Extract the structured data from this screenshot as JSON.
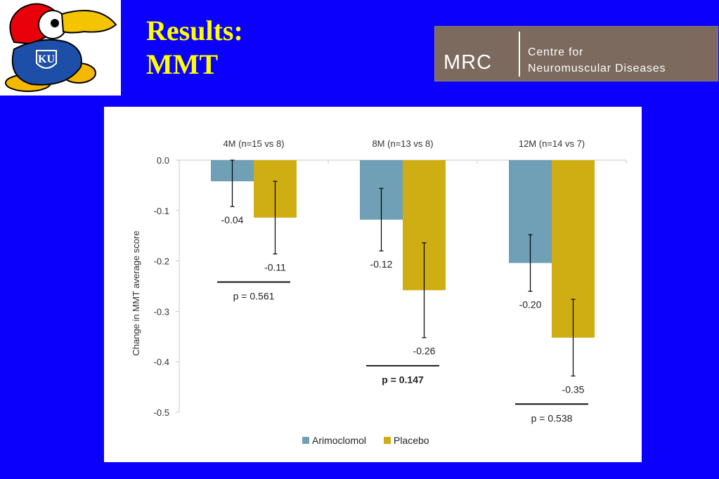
{
  "header": {
    "title_line1": "Results:",
    "title_line2": "MMT",
    "mrc_logo": {
      "abbr": "MRC",
      "line1": "Centre for",
      "line2": "Neuromuscular Diseases"
    },
    "ku_logo": {
      "text": "KU",
      "icon": "jayhawk-mascot-icon"
    }
  },
  "colors": {
    "background": "#0a00fb",
    "title": "#ffff00",
    "arimoclomol": "#6fa0b5",
    "placebo": "#cfae13",
    "mrc_bg": "#7b6a5d"
  },
  "chart_data": {
    "type": "bar",
    "categories": [
      "4M (n=15 vs 8)",
      "8M (n=13 vs 8)",
      "12M (n=14 vs 7)"
    ],
    "ylabel": "Change in MMT average score",
    "xlabel": "",
    "ylim": [
      -0.5,
      0.0
    ],
    "yticks": [
      "0.0",
      "-0.1",
      "-0.2",
      "-0.3",
      "-0.4",
      "-0.5"
    ],
    "legend_position": "bottom",
    "grid": false,
    "series": [
      {
        "name": "Arimoclomol",
        "values": [
          -0.042,
          -0.118,
          -0.204
        ],
        "labels": [
          "-0.04",
          "-0.12",
          "-0.20"
        ],
        "error_low": [
          -0.092,
          -0.18,
          -0.26
        ],
        "error_high": [
          0.0,
          -0.056,
          -0.148
        ]
      },
      {
        "name": "Placebo",
        "values": [
          -0.114,
          -0.258,
          -0.352
        ],
        "labels": [
          "-0.11",
          "-0.26",
          "-0.35"
        ],
        "error_low": [
          -0.186,
          -0.352,
          -0.428
        ],
        "error_high": [
          -0.042,
          -0.164,
          -0.276
        ]
      }
    ],
    "pvalues": [
      "p = 0.561",
      "p = 0.147",
      "p = 0.538"
    ],
    "pvalue_bold": [
      false,
      true,
      false
    ]
  }
}
